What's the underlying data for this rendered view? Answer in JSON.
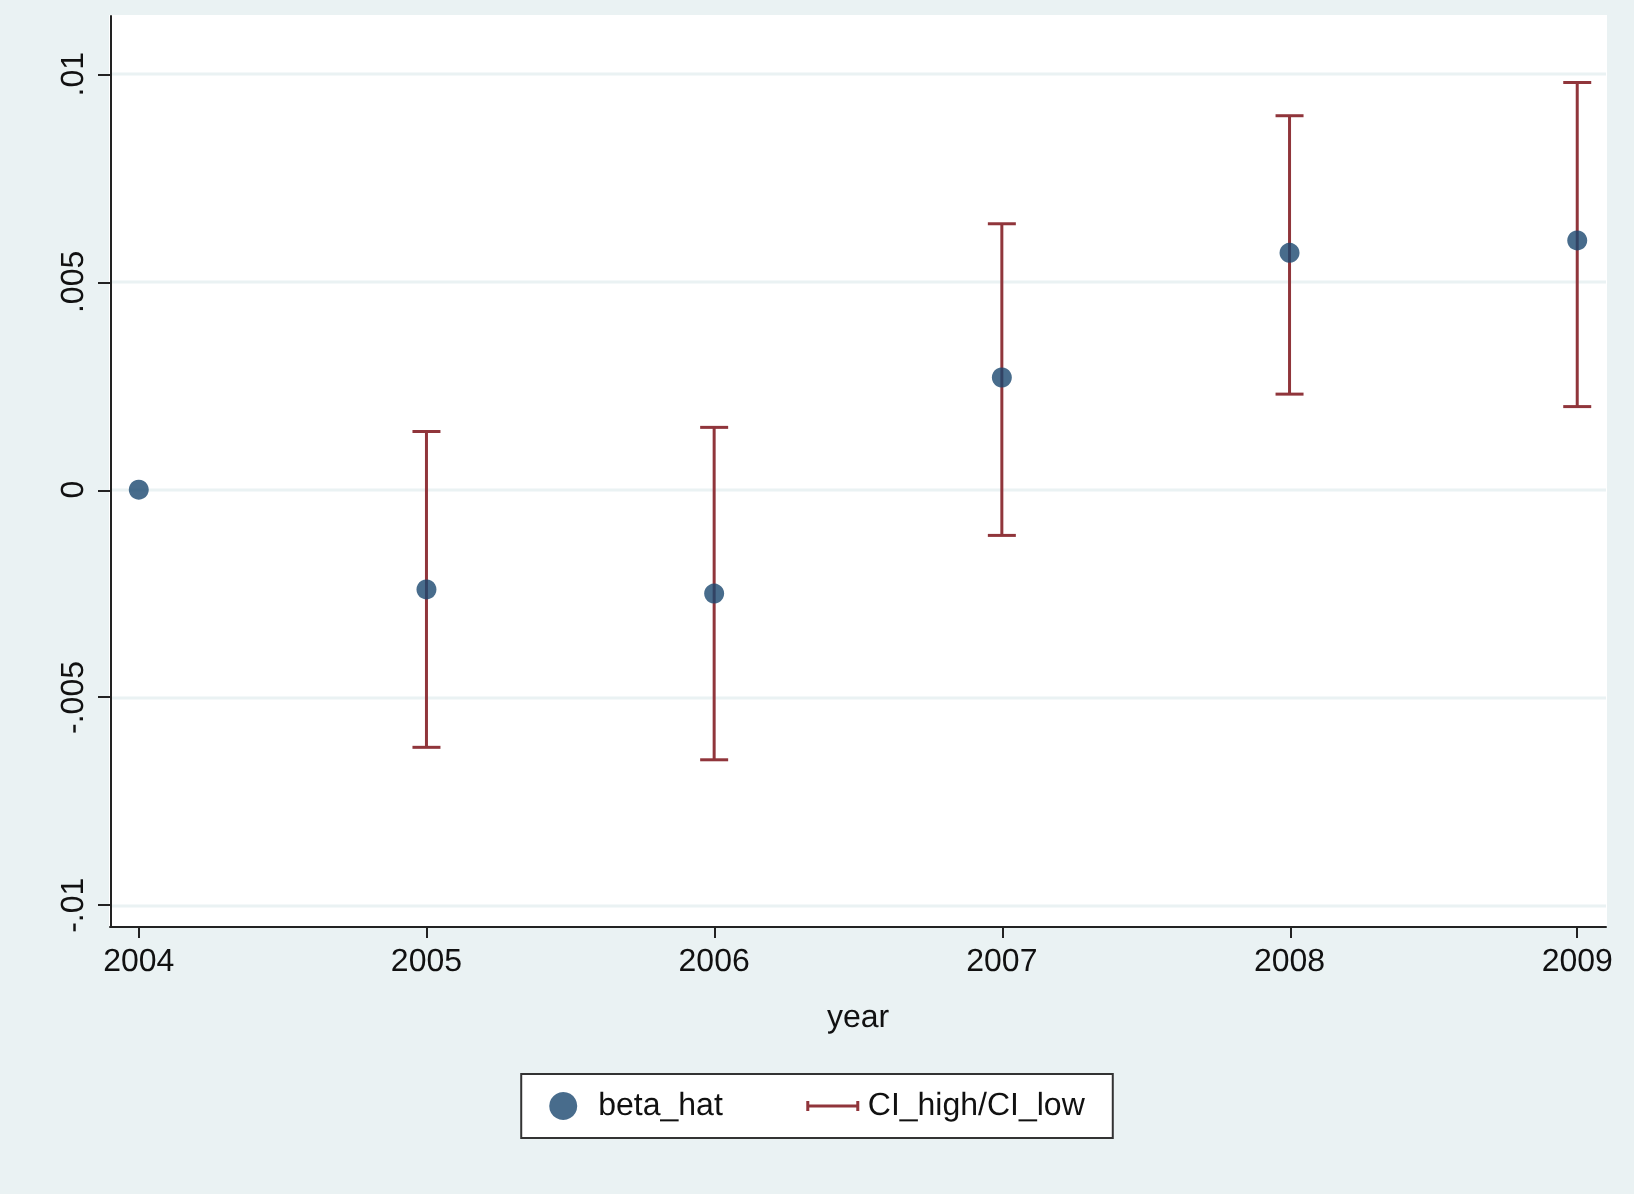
{
  "chart_data": {
    "type": "scatter",
    "xlabel": "year",
    "x": [
      2004,
      2005,
      2006,
      2007,
      2008,
      2009
    ],
    "xlim": [
      2003.9,
      2009.1
    ],
    "xticks": [
      2004,
      2005,
      2006,
      2007,
      2008,
      2009
    ],
    "ylim": [
      -0.0105,
      0.0114
    ],
    "yticks": [
      {
        "value": -0.01,
        "label": "-.01"
      },
      {
        "value": -0.005,
        "label": "-.005"
      },
      {
        "value": 0,
        "label": "0"
      },
      {
        "value": 0.005,
        "label": ".005"
      },
      {
        "value": 0.01,
        "label": ".01"
      }
    ],
    "grid": "y",
    "legend": "bottom",
    "marker": "circle",
    "annotations": [
      "CI_high/CI_low"
    ],
    "series": [
      {
        "name": "beta_hat",
        "color": "#1a476f",
        "values": [
          0,
          -0.0024,
          -0.0025,
          0.0027,
          0.0057,
          0.006
        ],
        "errors": [
          null,
          [
            -0.0062,
            0.0014
          ],
          [
            -0.0065,
            0.0015
          ],
          [
            -0.0011,
            0.0064
          ],
          [
            0.0023,
            0.009
          ],
          [
            0.002,
            0.0098
          ]
        ]
      }
    ]
  }
}
